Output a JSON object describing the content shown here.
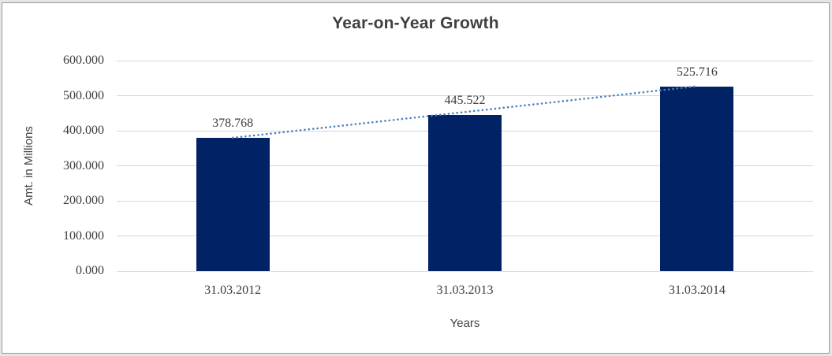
{
  "chart_data": {
    "type": "bar",
    "title": "Year-on-Year Growth",
    "xlabel": "Years",
    "ylabel": "Amt. in Millions",
    "categories": [
      "31.03.2012",
      "31.03.2013",
      "31.03.2014"
    ],
    "values": [
      378.768,
      445.522,
      525.716
    ],
    "data_labels": [
      "378.768",
      "445.522",
      "525.716"
    ],
    "ytick_labels": [
      "0.000",
      "100.000",
      "200.000",
      "300.000",
      "400.000",
      "500.000",
      "600.000"
    ],
    "ylim": [
      0,
      600
    ],
    "grid": true,
    "legend": "none",
    "trendline": {
      "style": "dotted",
      "fit": "linear"
    },
    "colors": {
      "bar": "#012365",
      "trendline": "#4a80c2",
      "gridline": "#d6d6d6",
      "title_text": "#404040",
      "tick_text": "#3d3d3d"
    }
  }
}
